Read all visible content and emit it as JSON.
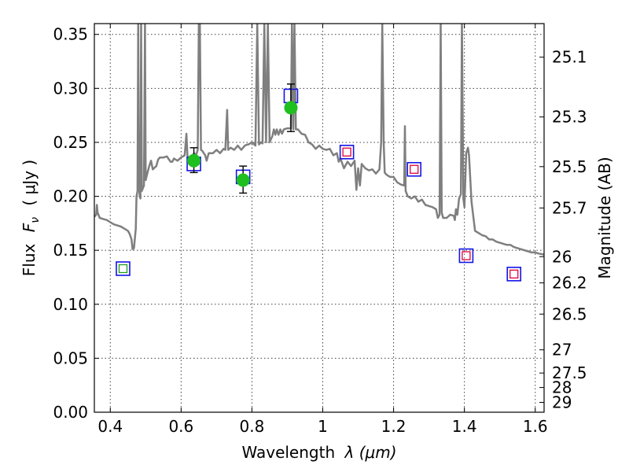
{
  "chart_data": {
    "type": "scatter",
    "xlabel_text": "Wavelength",
    "xlabel_math": "λ (μm)",
    "ylabel_text": "Flux",
    "ylabel_math_sym": "F",
    "ylabel_math_sub": "ν",
    "ylabel_unit": "( μJy )",
    "y2label": "Magnitude (AB)",
    "xlim": [
      0.355,
      1.625
    ],
    "ylim": [
      0.0,
      0.36
    ],
    "grid": true,
    "x_ticks": [
      {
        "value": 0.4,
        "label": "0.4"
      },
      {
        "value": 0.6,
        "label": "0.6"
      },
      {
        "value": 0.8,
        "label": "0.8"
      },
      {
        "value": 1.0,
        "label": "1"
      },
      {
        "value": 1.2,
        "label": "1.2"
      },
      {
        "value": 1.4,
        "label": "1.4"
      },
      {
        "value": 1.6,
        "label": "1.6"
      }
    ],
    "y_ticks": [
      {
        "value": 0.0,
        "label": "0.00"
      },
      {
        "value": 0.05,
        "label": "0.05"
      },
      {
        "value": 0.1,
        "label": "0.10"
      },
      {
        "value": 0.15,
        "label": "0.15"
      },
      {
        "value": 0.2,
        "label": "0.20"
      },
      {
        "value": 0.25,
        "label": "0.25"
      },
      {
        "value": 0.3,
        "label": "0.30"
      },
      {
        "value": 0.35,
        "label": "0.35"
      }
    ],
    "y2_ticks": [
      {
        "label": "25.1",
        "flux": 0.3289
      },
      {
        "label": "25.3",
        "flux": 0.2735
      },
      {
        "label": "25.5",
        "flux": 0.2275
      },
      {
        "label": "25.7",
        "flux": 0.1892
      },
      {
        "label": "26",
        "flux": 0.1441
      },
      {
        "label": "26.2",
        "flux": 0.1198
      },
      {
        "label": "26.5",
        "flux": 0.0909
      },
      {
        "label": "27",
        "flux": 0.0578
      },
      {
        "label": "27.5",
        "flux": 0.0363
      },
      {
        "label": "28",
        "flux": 0.0229
      },
      {
        "label": "29",
        "flux": 0.0091
      }
    ],
    "series": [
      {
        "kind": "model_spectrum",
        "color": "#7f7f7f",
        "points": [
          [
            0.355,
            0.181
          ],
          [
            0.36,
            0.183
          ],
          [
            0.362,
            0.192
          ],
          [
            0.364,
            0.185
          ],
          [
            0.37,
            0.18
          ],
          [
            0.38,
            0.179
          ],
          [
            0.39,
            0.178
          ],
          [
            0.4,
            0.176
          ],
          [
            0.41,
            0.174
          ],
          [
            0.42,
            0.173
          ],
          [
            0.43,
            0.172
          ],
          [
            0.44,
            0.17
          ],
          [
            0.45,
            0.168
          ],
          [
            0.455,
            0.165
          ],
          [
            0.46,
            0.16
          ],
          [
            0.463,
            0.151
          ],
          [
            0.467,
            0.152
          ],
          [
            0.472,
            0.17
          ],
          [
            0.474,
            0.2
          ],
          [
            0.477,
            0.205
          ],
          [
            0.479,
            0.36
          ],
          [
            0.481,
            0.21
          ],
          [
            0.483,
            0.2
          ],
          [
            0.485,
            0.198
          ],
          [
            0.487,
            0.36
          ],
          [
            0.489,
            0.205
          ],
          [
            0.495,
            0.21
          ],
          [
            0.498,
            0.36
          ],
          [
            0.5,
            0.215
          ],
          [
            0.505,
            0.222
          ],
          [
            0.51,
            0.228
          ],
          [
            0.515,
            0.233
          ],
          [
            0.52,
            0.225
          ],
          [
            0.53,
            0.228
          ],
          [
            0.535,
            0.234
          ],
          [
            0.54,
            0.236
          ],
          [
            0.55,
            0.236
          ],
          [
            0.56,
            0.237
          ],
          [
            0.57,
            0.232
          ],
          [
            0.575,
            0.232
          ],
          [
            0.58,
            0.235
          ],
          [
            0.59,
            0.233
          ],
          [
            0.6,
            0.236
          ],
          [
            0.61,
            0.238
          ],
          [
            0.615,
            0.258
          ],
          [
            0.618,
            0.236
          ],
          [
            0.63,
            0.237
          ],
          [
            0.637,
            0.24
          ],
          [
            0.642,
            0.238
          ],
          [
            0.647,
            0.243
          ],
          [
            0.65,
            0.36
          ],
          [
            0.653,
            0.36
          ],
          [
            0.656,
            0.243
          ],
          [
            0.66,
            0.242
          ],
          [
            0.668,
            0.238
          ],
          [
            0.672,
            0.233
          ],
          [
            0.678,
            0.24
          ],
          [
            0.69,
            0.24
          ],
          [
            0.7,
            0.243
          ],
          [
            0.71,
            0.24
          ],
          [
            0.72,
            0.244
          ],
          [
            0.725,
            0.243
          ],
          [
            0.73,
            0.28
          ],
          [
            0.733,
            0.243
          ],
          [
            0.74,
            0.245
          ],
          [
            0.75,
            0.243
          ],
          [
            0.76,
            0.247
          ],
          [
            0.77,
            0.243
          ],
          [
            0.78,
            0.247
          ],
          [
            0.787,
            0.248
          ],
          [
            0.79,
            0.248
          ],
          [
            0.8,
            0.25
          ],
          [
            0.81,
            0.247
          ],
          [
            0.815,
            0.36
          ],
          [
            0.82,
            0.248
          ],
          [
            0.825,
            0.25
          ],
          [
            0.83,
            0.249
          ],
          [
            0.835,
            0.36
          ],
          [
            0.84,
            0.25
          ],
          [
            0.845,
            0.36
          ],
          [
            0.85,
            0.25
          ],
          [
            0.858,
            0.256
          ],
          [
            0.862,
            0.262
          ],
          [
            0.866,
            0.257
          ],
          [
            0.87,
            0.262
          ],
          [
            0.875,
            0.257
          ],
          [
            0.88,
            0.262
          ],
          [
            0.885,
            0.258
          ],
          [
            0.89,
            0.262
          ],
          [
            0.9,
            0.263
          ],
          [
            0.91,
            0.263
          ],
          [
            0.913,
            0.36
          ],
          [
            0.917,
            0.262
          ],
          [
            0.92,
            0.36
          ],
          [
            0.924,
            0.262
          ],
          [
            0.93,
            0.262
          ],
          [
            0.94,
            0.258
          ],
          [
            0.95,
            0.257
          ],
          [
            0.96,
            0.25
          ],
          [
            0.97,
            0.248
          ],
          [
            0.98,
            0.244
          ],
          [
            0.99,
            0.247
          ],
          [
            1.0,
            0.244
          ],
          [
            1.01,
            0.243
          ],
          [
            1.02,
            0.244
          ],
          [
            1.03,
            0.238
          ],
          [
            1.04,
            0.24
          ],
          [
            1.045,
            0.232
          ],
          [
            1.05,
            0.235
          ],
          [
            1.06,
            0.226
          ],
          [
            1.07,
            0.232
          ],
          [
            1.08,
            0.228
          ],
          [
            1.09,
            0.233
          ],
          [
            1.095,
            0.206
          ],
          [
            1.1,
            0.226
          ],
          [
            1.105,
            0.21
          ],
          [
            1.11,
            0.23
          ],
          [
            1.12,
            0.226
          ],
          [
            1.13,
            0.224
          ],
          [
            1.14,
            0.225
          ],
          [
            1.15,
            0.221
          ],
          [
            1.16,
            0.225
          ],
          [
            1.165,
            0.25
          ],
          [
            1.168,
            0.36
          ],
          [
            1.172,
            0.25
          ],
          [
            1.175,
            0.222
          ],
          [
            1.18,
            0.22
          ],
          [
            1.19,
            0.218
          ],
          [
            1.2,
            0.218
          ],
          [
            1.21,
            0.213
          ],
          [
            1.22,
            0.211
          ],
          [
            1.23,
            0.21
          ],
          [
            1.232,
            0.265
          ],
          [
            1.234,
            0.205
          ],
          [
            1.24,
            0.2
          ],
          [
            1.25,
            0.198
          ],
          [
            1.26,
            0.2
          ],
          [
            1.27,
            0.195
          ],
          [
            1.28,
            0.197
          ],
          [
            1.29,
            0.192
          ],
          [
            1.3,
            0.191
          ],
          [
            1.31,
            0.19
          ],
          [
            1.32,
            0.188
          ],
          [
            1.325,
            0.18
          ],
          [
            1.33,
            0.183
          ],
          [
            1.333,
            0.36
          ],
          [
            1.336,
            0.185
          ],
          [
            1.34,
            0.18
          ],
          [
            1.35,
            0.18
          ],
          [
            1.36,
            0.183
          ],
          [
            1.37,
            0.182
          ],
          [
            1.373,
            0.178
          ],
          [
            1.376,
            0.188
          ],
          [
            1.38,
            0.183
          ],
          [
            1.385,
            0.198
          ],
          [
            1.39,
            0.202
          ],
          [
            1.393,
            0.36
          ],
          [
            1.397,
            0.198
          ],
          [
            1.4,
            0.19
          ],
          [
            1.405,
            0.24
          ],
          [
            1.41,
            0.245
          ],
          [
            1.413,
            0.238
          ],
          [
            1.42,
            0.195
          ],
          [
            1.43,
            0.168
          ],
          [
            1.44,
            0.166
          ],
          [
            1.45,
            0.164
          ],
          [
            1.46,
            0.163
          ],
          [
            1.47,
            0.16
          ],
          [
            1.48,
            0.16
          ],
          [
            1.49,
            0.158
          ],
          [
            1.5,
            0.157
          ],
          [
            1.51,
            0.156
          ],
          [
            1.52,
            0.155
          ],
          [
            1.53,
            0.155
          ],
          [
            1.54,
            0.153
          ],
          [
            1.55,
            0.152
          ],
          [
            1.56,
            0.151
          ],
          [
            1.57,
            0.15
          ],
          [
            1.58,
            0.149
          ],
          [
            1.59,
            0.148
          ],
          [
            1.6,
            0.148
          ],
          [
            1.61,
            0.147
          ],
          [
            1.625,
            0.146
          ]
        ]
      }
    ],
    "observed": [
      {
        "x": 0.636,
        "y": 0.233,
        "yerr_low": 0.222,
        "yerr_high": 0.245,
        "color": "#1fbf1f"
      },
      {
        "x": 0.775,
        "y": 0.215,
        "yerr_low": 0.203,
        "yerr_high": 0.228,
        "color": "#1fbf1f"
      },
      {
        "x": 0.91,
        "y": 0.282,
        "yerr_low": 0.26,
        "yerr_high": 0.304,
        "color": "#1fbf1f"
      }
    ],
    "model_boxes": [
      {
        "x": 0.436,
        "y": 0.133,
        "color": "#1414e6"
      },
      {
        "x": 0.636,
        "y": 0.23,
        "color": "#1414e6"
      },
      {
        "x": 0.775,
        "y": 0.218,
        "color": "#1414e6"
      },
      {
        "x": 0.91,
        "y": 0.293,
        "color": "#1414e6"
      },
      {
        "x": 1.068,
        "y": 0.241,
        "color": "#1414e6"
      },
      {
        "x": 1.258,
        "y": 0.225,
        "color": "#1414e6"
      },
      {
        "x": 1.405,
        "y": 0.145,
        "color": "#1414e6"
      },
      {
        "x": 1.54,
        "y": 0.128,
        "color": "#1414e6"
      }
    ],
    "inner_boxes": [
      {
        "x": 0.436,
        "y": 0.133,
        "color": "#1a9e1a"
      },
      {
        "x": 1.068,
        "y": 0.241,
        "color": "#e0003c"
      },
      {
        "x": 1.258,
        "y": 0.225,
        "color": "#e0003c"
      },
      {
        "x": 1.405,
        "y": 0.145,
        "color": "#e0003c"
      },
      {
        "x": 1.54,
        "y": 0.128,
        "color": "#e0003c"
      }
    ]
  }
}
